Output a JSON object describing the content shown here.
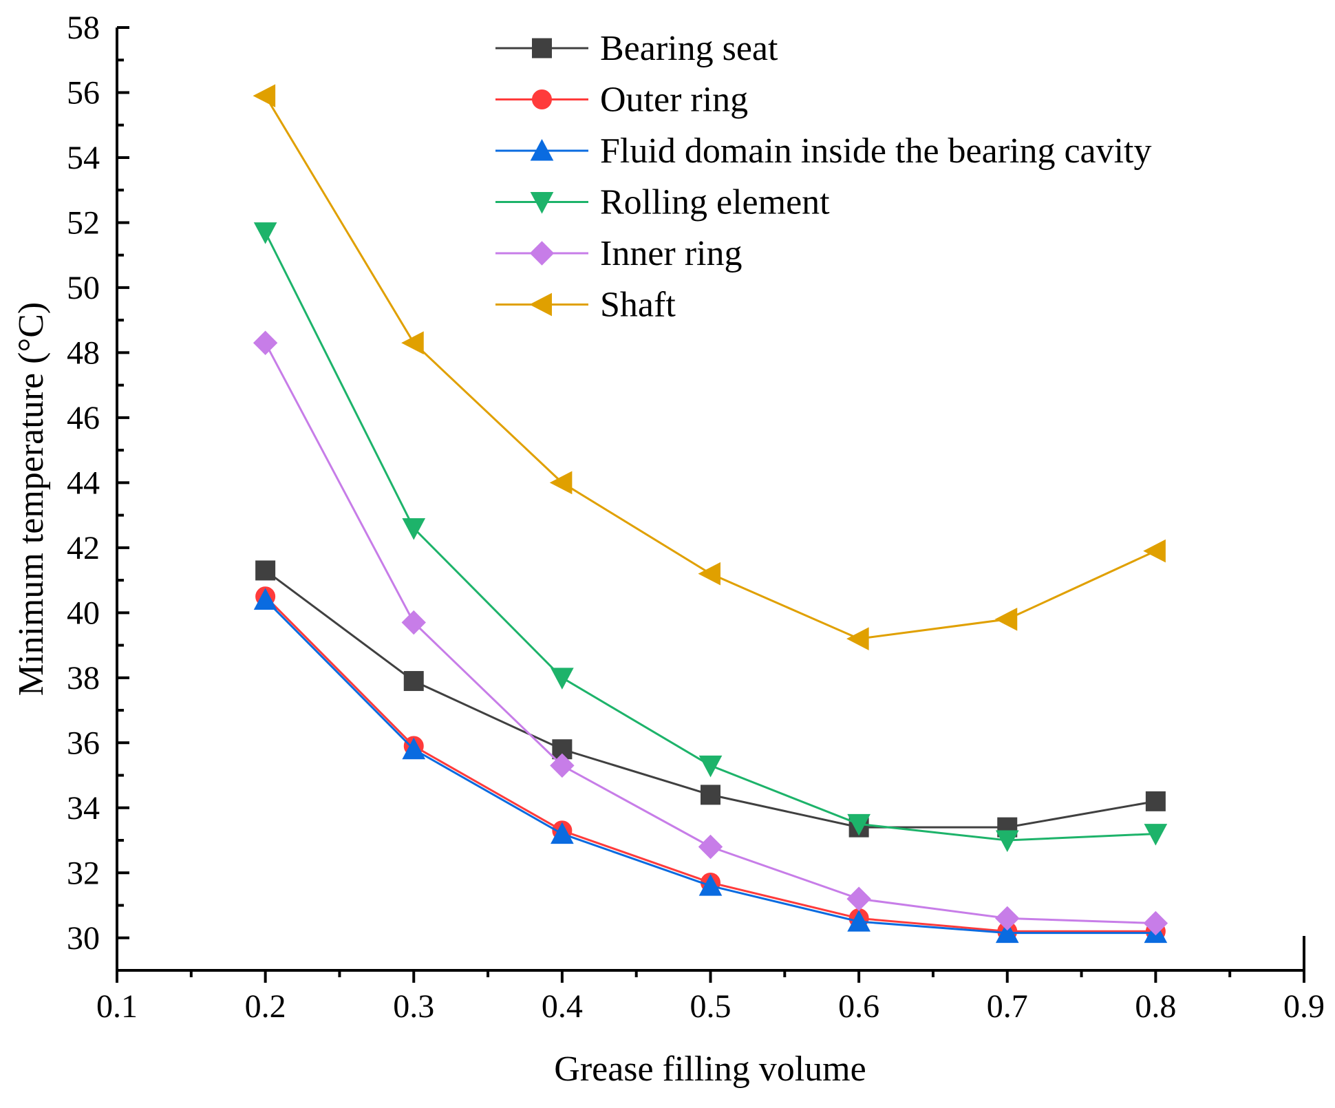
{
  "chart_data": {
    "type": "line",
    "title": "",
    "xlabel": "Grease filling volume",
    "ylabel": "Minimum temperature (°C)",
    "xlim": [
      0.1,
      0.9
    ],
    "ylim": [
      29,
      58
    ],
    "xticks": [
      "0.1",
      "0.2",
      "0.3",
      "0.4",
      "0.5",
      "0.6",
      "0.7",
      "0.8",
      "0.9"
    ],
    "yticks": [
      "30",
      "32",
      "34",
      "36",
      "38",
      "40",
      "42",
      "44",
      "46",
      "48",
      "50",
      "52",
      "54",
      "56",
      "58"
    ],
    "grid": false,
    "legend_position": "top-right",
    "x": [
      0.2,
      0.3,
      0.4,
      0.5,
      0.6,
      0.7,
      0.8
    ],
    "series": [
      {
        "name": "Bearing seat",
        "marker": "square",
        "color": "#404040",
        "values": [
          41.3,
          37.9,
          35.8,
          34.4,
          33.4,
          33.4,
          34.2
        ]
      },
      {
        "name": "Outer ring",
        "marker": "circle",
        "color": "#FF3B3B",
        "values": [
          40.5,
          35.9,
          33.3,
          31.7,
          30.6,
          30.2,
          30.2
        ]
      },
      {
        "name": "Fluid domain inside the bearing cavity",
        "marker": "triangle-up",
        "color": "#0A6BE0",
        "values": [
          40.4,
          35.8,
          33.2,
          31.6,
          30.5,
          30.15,
          30.15
        ]
      },
      {
        "name": "Rolling element",
        "marker": "triangle-down",
        "color": "#1DB36A",
        "values": [
          51.7,
          42.6,
          38.0,
          35.3,
          33.5,
          33.0,
          33.2
        ]
      },
      {
        "name": "Inner ring",
        "marker": "diamond",
        "color": "#C77DE8",
        "values": [
          48.3,
          39.7,
          35.3,
          32.8,
          31.2,
          30.6,
          30.45
        ]
      },
      {
        "name": "Shaft",
        "marker": "triangle-left",
        "color": "#E0A000",
        "values": [
          55.9,
          48.3,
          44.0,
          41.2,
          39.2,
          39.8,
          41.9
        ]
      }
    ]
  }
}
